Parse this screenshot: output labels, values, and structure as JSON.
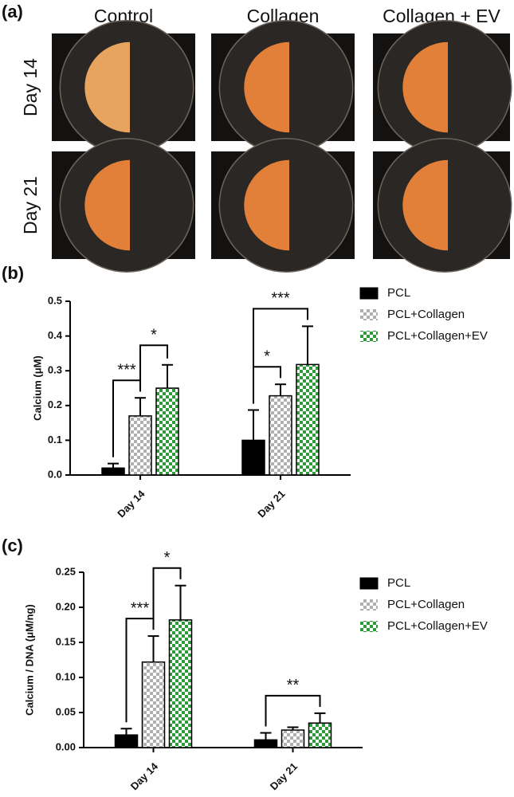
{
  "panel_a": {
    "label": "(a)",
    "columns": [
      "Control",
      "Collagen",
      "Collagen + EV"
    ],
    "rows": [
      "Day 14",
      "Day 21"
    ]
  },
  "chart_data": [
    {
      "type": "bar",
      "label": "(b)",
      "ylabel": "Calcium (μM)",
      "categories": [
        "Day 14",
        "Day 21"
      ],
      "series": [
        {
          "name": "PCL",
          "color": "#000000",
          "pattern": "solid",
          "values": [
            0.02,
            0.1
          ],
          "errors": [
            0.013,
            0.087
          ]
        },
        {
          "name": "PCL+Collagen",
          "color": "#b0b0b0",
          "pattern": "checker",
          "values": [
            0.17,
            0.228
          ],
          "errors": [
            0.052,
            0.033
          ]
        },
        {
          "name": "PCL+Collagen+EV",
          "color": "#2e9a3c",
          "pattern": "checker",
          "values": [
            0.25,
            0.318
          ],
          "errors": [
            0.067,
            0.11
          ]
        }
      ],
      "ylim": [
        0,
        0.5
      ],
      "yticks": [
        {
          "value": 0,
          "label": "0.0"
        },
        0.1,
        0.2,
        0.3,
        0.4,
        0.5
      ],
      "annotations": [
        {
          "text": "***",
          "category": "Day 14",
          "between": [
            "PCL",
            "PCL+Collagen"
          ]
        },
        {
          "text": "*",
          "category": "Day 14",
          "between": [
            "PCL+Collagen",
            "PCL+Collagen+EV"
          ]
        },
        {
          "text": "*",
          "category": "Day 21",
          "between": [
            "PCL",
            "PCL+Collagen"
          ]
        },
        {
          "text": "***",
          "category": "Day 21",
          "between": [
            "PCL",
            "PCL+Collagen+EV"
          ]
        }
      ],
      "legend": "right"
    },
    {
      "type": "bar",
      "label": "(c)",
      "ylabel": "Calcium / DNA (μM/ng)",
      "categories": [
        "Day 14",
        "Day 21"
      ],
      "series": [
        {
          "name": "PCL",
          "color": "#000000",
          "pattern": "solid",
          "values": [
            0.018,
            0.011
          ],
          "errors": [
            0.009,
            0.01
          ]
        },
        {
          "name": "PCL+Collagen",
          "color": "#b0b0b0",
          "pattern": "checker",
          "values": [
            0.122,
            0.025
          ],
          "errors": [
            0.037,
            0.004
          ]
        },
        {
          "name": "PCL+Collagen+EV",
          "color": "#2e9a3c",
          "pattern": "checker",
          "values": [
            0.182,
            0.035
          ],
          "errors": [
            0.049,
            0.014
          ]
        }
      ],
      "ylim": [
        0,
        0.25
      ],
      "yticks": [
        {
          "value": 0,
          "label": "0.00"
        },
        0.05,
        {
          "value": 0.1,
          "label": "0.10"
        },
        0.15,
        {
          "value": 0.2,
          "label": "0.20"
        },
        0.25
      ],
      "annotations": [
        {
          "text": "***",
          "category": "Day 14",
          "between": [
            "PCL",
            "PCL+Collagen"
          ]
        },
        {
          "text": "*",
          "category": "Day 14",
          "between": [
            "PCL+Collagen",
            "PCL+Collagen+EV"
          ]
        },
        {
          "text": "**",
          "category": "Day 21",
          "between": [
            "PCL",
            "PCL+Collagen+EV"
          ]
        }
      ],
      "legend": "right"
    }
  ]
}
